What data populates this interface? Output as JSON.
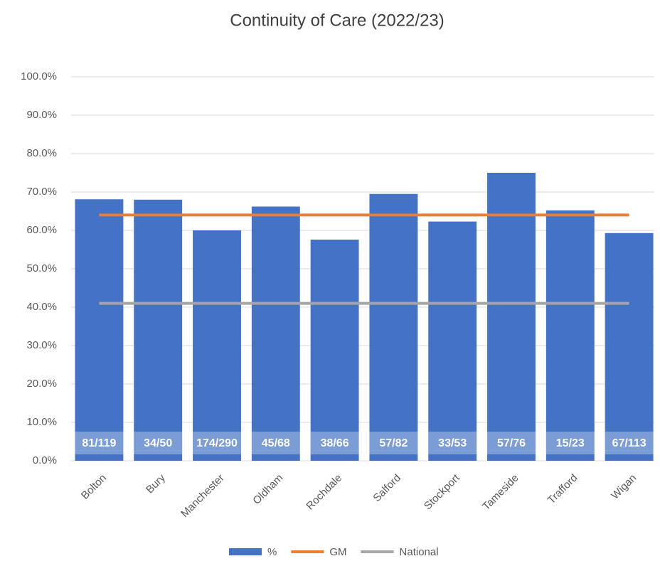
{
  "chart_data": {
    "type": "bar",
    "title": "Continuity of Care (2022/23)",
    "categories": [
      "Bolton",
      "Bury",
      "Manchester",
      "Oldham",
      "Rochdale",
      "Salford",
      "Stockport",
      "Tameside",
      "Trafford",
      "Wigan"
    ],
    "series": [
      {
        "name": "%",
        "type": "bar",
        "color": "#4472c4",
        "values": [
          68.1,
          68.0,
          60.0,
          66.2,
          57.6,
          69.5,
          62.3,
          75.0,
          65.2,
          59.3
        ],
        "value_labels": [
          "81/119",
          "34/50",
          "174/290",
          "45/68",
          "38/66",
          "57/82",
          "33/53",
          "57/76",
          "15/23",
          "67/113"
        ]
      },
      {
        "name": "GM",
        "type": "line",
        "color": "#ed7d31",
        "values": [
          64,
          64,
          64,
          64,
          64,
          64,
          64,
          64,
          64,
          64
        ]
      },
      {
        "name": "National",
        "type": "line",
        "color": "#a5a5a5",
        "values": [
          41,
          41,
          41,
          41,
          41,
          41,
          41,
          41,
          41,
          41
        ]
      }
    ],
    "ylim": [
      0,
      100
    ],
    "yticks": [
      {
        "value": 0,
        "label": "0.0%"
      },
      {
        "value": 10,
        "label": "10.0%"
      },
      {
        "value": 20,
        "label": "20.0%"
      },
      {
        "value": 30,
        "label": "30.0%"
      },
      {
        "value": 40,
        "label": "40.0%"
      },
      {
        "value": 50,
        "label": "50.0%"
      },
      {
        "value": 60,
        "label": "60.0%"
      },
      {
        "value": 70,
        "label": "70.0%"
      },
      {
        "value": 80,
        "label": "80.0%"
      },
      {
        "value": 90,
        "label": "90.0%"
      },
      {
        "value": 100,
        "label": "100.0%"
      }
    ],
    "grid": true,
    "legend": "bottom"
  }
}
